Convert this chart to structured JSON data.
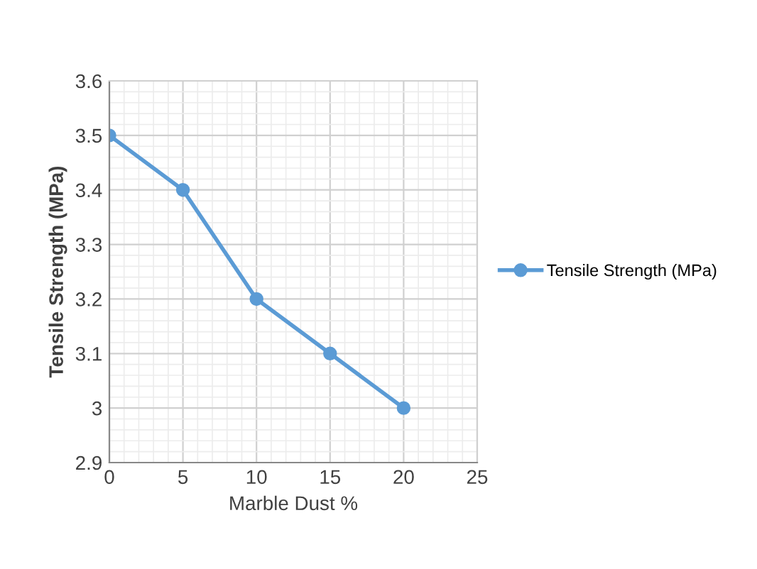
{
  "chart_data": {
    "type": "line",
    "xlabel": "Marble Dust %",
    "ylabel": "Tensile Strength (MPa)",
    "x": [
      0,
      5,
      10,
      15,
      20
    ],
    "series": [
      {
        "name": "Tensile Strength (MPa)",
        "color": "#5b9bd5",
        "values": [
          3.5,
          3.4,
          3.2,
          3.1,
          3.0
        ]
      }
    ],
    "xlim": [
      0,
      25
    ],
    "xticks": [
      0,
      5,
      10,
      15,
      20,
      25
    ],
    "ylim": [
      2.9,
      3.6
    ],
    "yticks": [
      {
        "value": 2.9,
        "label": "2.9"
      },
      {
        "value": 3.0,
        "label": "3"
      },
      {
        "value": 3.1,
        "label": "3.1"
      },
      {
        "value": 3.2,
        "label": "3.2"
      },
      {
        "value": 3.3,
        "label": "3.3"
      },
      {
        "value": 3.4,
        "label": "3.4"
      },
      {
        "value": 3.5,
        "label": "3.5"
      },
      {
        "value": 3.6,
        "label": "3.6"
      }
    ],
    "grid": true,
    "legend": "right",
    "marker": "circle",
    "line_style": "solid"
  }
}
